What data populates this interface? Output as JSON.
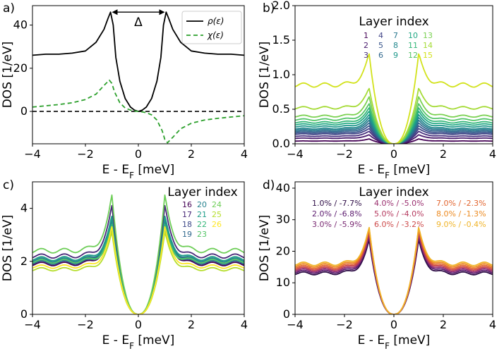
{
  "colors": {
    "rho": "#000000",
    "chi": "#2ca02c",
    "zero_line": "#000000"
  },
  "chart_data": [
    {
      "type": "line",
      "panel_label": "a)",
      "xlabel": "E - E_F [meV]",
      "ylabel": "DOS [1/eV]",
      "xlim": [
        -4,
        4
      ],
      "ylim": [
        -15,
        49
      ],
      "xticks": [
        -4,
        -2,
        0,
        2,
        4
      ],
      "xtick_labels": [
        "−4",
        "−2",
        "0",
        "2",
        "4"
      ],
      "yticks": [
        0,
        20,
        40
      ],
      "ytick_labels": [
        "0",
        "20",
        "40"
      ],
      "annotation": "Δ",
      "annotation_span": [
        -1.0,
        1.0
      ],
      "annotation_y": 46,
      "zero_line": true,
      "legend": [
        "ρ(ε)",
        "χ(ε)"
      ],
      "series": [
        {
          "name": "ρ(ε)",
          "color": "#000000",
          "dash": "",
          "x": [
            -4,
            -3.5,
            -3,
            -2.5,
            -2,
            -1.6,
            -1.3,
            -1.15,
            -1.05,
            -0.95,
            -0.85,
            -0.7,
            -0.5,
            -0.3,
            -0.15,
            0,
            0.15,
            0.3,
            0.5,
            0.7,
            0.85,
            0.95,
            1.05,
            1.15,
            1.3,
            1.6,
            2,
            2.5,
            3,
            3.5,
            4
          ],
          "y": [
            26,
            26.5,
            26.5,
            27,
            28,
            32,
            38,
            43,
            46,
            40,
            25,
            14,
            6,
            2,
            0.6,
            0,
            0.6,
            2,
            6,
            14,
            25,
            40,
            46,
            43,
            38,
            32,
            28,
            27,
            26.5,
            26.5,
            26
          ]
        },
        {
          "name": "χ(ε)",
          "color": "#2ca02c",
          "dash": "6,4",
          "x": [
            -4,
            -3.5,
            -3,
            -2.5,
            -2,
            -1.6,
            -1.3,
            -1.1,
            -1.0,
            -0.9,
            -0.7,
            -0.5,
            -0.3,
            -0.15,
            0,
            0.15,
            0.3,
            0.5,
            0.7,
            0.9,
            1.0,
            1.1,
            1.3,
            1.6,
            2,
            2.5,
            3,
            3.5,
            4
          ],
          "y": [
            2,
            2.6,
            3.2,
            4,
            5.5,
            8,
            12,
            14.5,
            13,
            9,
            4,
            1.6,
            0.6,
            0.2,
            0,
            -0.2,
            -0.6,
            -1.6,
            -4,
            -9,
            -13,
            -14.5,
            -12,
            -8,
            -5.5,
            -4,
            -3.2,
            -2.6,
            -2
          ]
        }
      ]
    },
    {
      "type": "line",
      "panel_label": "b)",
      "xlabel": "E - E_F [meV]",
      "ylabel": "DOS [1/eV]",
      "xlim": [
        -4,
        4
      ],
      "ylim": [
        0,
        2.0
      ],
      "xticks": [
        -4,
        -2,
        0,
        2,
        4
      ],
      "xtick_labels": [
        "−4",
        "−2",
        "0",
        "2",
        "4"
      ],
      "yticks": [
        0,
        0.5,
        1.0,
        1.5,
        2.0
      ],
      "ytick_labels": [
        "0.0",
        "0.5",
        "1.0",
        "1.5",
        "2.0"
      ],
      "legend_title": "Layer index",
      "legend_labels": [
        "1",
        "2",
        "3",
        "4",
        "5",
        "6",
        "7",
        "8",
        "9",
        "10",
        "11",
        "12",
        "13",
        "14",
        "15"
      ],
      "series": [
        {
          "name": "1",
          "color": "#440154",
          "base": 0.04,
          "peak": 0.07
        },
        {
          "name": "2",
          "color": "#481a6c",
          "base": 0.08,
          "peak": 0.13
        },
        {
          "name": "3",
          "color": "#472f7d",
          "base": 0.11,
          "peak": 0.18
        },
        {
          "name": "4",
          "color": "#414487",
          "base": 0.14,
          "peak": 0.22
        },
        {
          "name": "5",
          "color": "#39568c",
          "base": 0.16,
          "peak": 0.26
        },
        {
          "name": "6",
          "color": "#31688e",
          "base": 0.18,
          "peak": 0.3
        },
        {
          "name": "7",
          "color": "#2a788e",
          "base": 0.2,
          "peak": 0.34
        },
        {
          "name": "8",
          "color": "#23888e",
          "base": 0.22,
          "peak": 0.38
        },
        {
          "name": "9",
          "color": "#1f988b",
          "base": 0.25,
          "peak": 0.42
        },
        {
          "name": "10",
          "color": "#22a884",
          "base": 0.28,
          "peak": 0.47
        },
        {
          "name": "11",
          "color": "#35b779",
          "base": 0.31,
          "peak": 0.52
        },
        {
          "name": "12",
          "color": "#54c568",
          "base": 0.35,
          "peak": 0.58
        },
        {
          "name": "13",
          "color": "#7ad151",
          "base": 0.4,
          "peak": 0.68
        },
        {
          "name": "14",
          "color": "#a5db36",
          "base": 0.52,
          "peak": 0.8
        },
        {
          "name": "15",
          "color": "#d2e21b",
          "base": 0.85,
          "peak": 1.3
        }
      ]
    },
    {
      "type": "line",
      "panel_label": "c)",
      "xlabel": "E - E_F [meV]",
      "ylabel": "DOS [1/eV]",
      "xlim": [
        -4,
        4
      ],
      "ylim": [
        0,
        5.0
      ],
      "xticks": [
        -4,
        -2,
        0,
        2,
        4
      ],
      "xtick_labels": [
        "−4",
        "−2",
        "0",
        "2",
        "4"
      ],
      "yticks": [
        0,
        2,
        4
      ],
      "ytick_labels": [
        "0",
        "2",
        "4"
      ],
      "legend_title": "Layer index",
      "legend_labels": [
        "16",
        "17",
        "18",
        "19",
        "20",
        "21",
        "22",
        "23",
        "24",
        "25",
        "26"
      ],
      "series": [
        {
          "name": "16",
          "color": "#440154",
          "base": 1.9,
          "peak": 3.6
        },
        {
          "name": "17",
          "color": "#482878",
          "base": 2.2,
          "peak": 4.1
        },
        {
          "name": "18",
          "color": "#3e4989",
          "base": 2.0,
          "peak": 3.7
        },
        {
          "name": "19",
          "color": "#31688e",
          "base": 1.95,
          "peak": 3.5
        },
        {
          "name": "20",
          "color": "#26828e",
          "base": 2.05,
          "peak": 3.6
        },
        {
          "name": "21",
          "color": "#1f9e89",
          "base": 2.1,
          "peak": 3.7
        },
        {
          "name": "22",
          "color": "#35b779",
          "base": 2.0,
          "peak": 3.4
        },
        {
          "name": "23",
          "color": "#54c568",
          "base": 2.0,
          "peak": 3.2
        },
        {
          "name": "24",
          "color": "#6ece58",
          "base": 2.4,
          "peak": 4.5
        },
        {
          "name": "25",
          "color": "#b5de2b",
          "base": 1.7,
          "peak": 3.1
        },
        {
          "name": "26",
          "color": "#fde725",
          "base": 1.8,
          "peak": 3.3
        }
      ]
    },
    {
      "type": "line",
      "panel_label": "d)",
      "xlabel": "E - E_F [meV]",
      "ylabel": "DOS [1/eV]",
      "xlim": [
        -4,
        4
      ],
      "ylim": [
        0,
        42
      ],
      "xticks": [
        -4,
        -2,
        0,
        2,
        4
      ],
      "xtick_labels": [
        "−4",
        "−2",
        "0",
        "2",
        "4"
      ],
      "yticks": [
        0,
        10,
        20,
        30,
        40
      ],
      "ytick_labels": [
        "0",
        "10",
        "20",
        "30",
        "40"
      ],
      "legend_title": "Layer index",
      "legend_labels": [
        "1.0% / -7.7%",
        "2.0% / -6.8%",
        "3.0% / -5.9%",
        "4.0% / -5.0%",
        "5.0% / -4.0%",
        "6.0% / -3.2%",
        "7.0% / -2.3%",
        "8.0% / -1.3%",
        "9.0% / -0.4%"
      ],
      "series": [
        {
          "name": "1.0% / -7.7%",
          "color": "#2d0c45",
          "base": 13.0,
          "peak": 23.5
        },
        {
          "name": "2.0% / -6.8%",
          "color": "#5b1a6e",
          "base": 13.5,
          "peak": 24.5
        },
        {
          "name": "3.0% / -5.9%",
          "color": "#7a2a73",
          "base": 14.0,
          "peak": 25.0
        },
        {
          "name": "4.0% / -5.0%",
          "color": "#9a2f6f",
          "base": 14.0,
          "peak": 25.5
        },
        {
          "name": "5.0% / -4.0%",
          "color": "#b53a5f",
          "base": 14.5,
          "peak": 26.0
        },
        {
          "name": "6.0% / -3.2%",
          "color": "#cd4a4a",
          "base": 14.5,
          "peak": 26.5
        },
        {
          "name": "7.0% / -2.3%",
          "color": "#e2652f",
          "base": 15.0,
          "peak": 26.8
        },
        {
          "name": "8.0% / -1.3%",
          "color": "#ec8a20",
          "base": 15.5,
          "peak": 27.2
        },
        {
          "name": "9.0% / -0.4%",
          "color": "#f0b429",
          "base": 16.0,
          "peak": 27.5
        }
      ]
    }
  ]
}
